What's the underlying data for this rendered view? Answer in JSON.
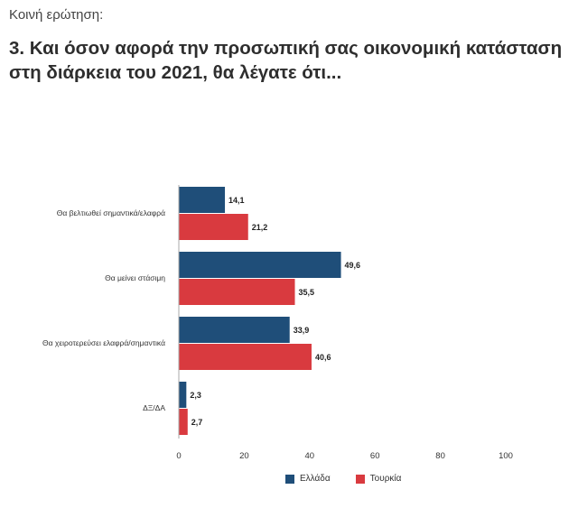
{
  "header": {
    "pretitle": "Κοινή ερώτηση:",
    "title": "3. Και όσον αφορά την προσωπική σας οικονομική κατάσταση στη διάρκεια του 2021, θα λέγατε ότι..."
  },
  "chart_data": {
    "type": "bar",
    "orientation": "horizontal",
    "categories": [
      "Θα βελτιωθεί σημαντικά/ελαφρά",
      "Θα μείνει στάσιμη",
      "Θα χειροτερεύσει ελαφρά/σημαντικά",
      "ΔΞ/ΔΑ"
    ],
    "series": [
      {
        "name": "Ελλάδα",
        "color": "#1f4e79",
        "values": [
          14.1,
          49.6,
          33.9,
          2.3
        ],
        "labels": [
          "14,1",
          "49,6",
          "33,9",
          "2,3"
        ]
      },
      {
        "name": "Τουρκία",
        "color": "#d93a3f",
        "values": [
          21.2,
          35.5,
          40.6,
          2.7
        ],
        "labels": [
          "21,2",
          "35,5",
          "40,6",
          "2,7"
        ]
      }
    ],
    "xlim": [
      0,
      100
    ],
    "xticks": [
      "0",
      "20",
      "40",
      "60",
      "80",
      "100"
    ],
    "grid": false,
    "legend_position": "bottom"
  }
}
